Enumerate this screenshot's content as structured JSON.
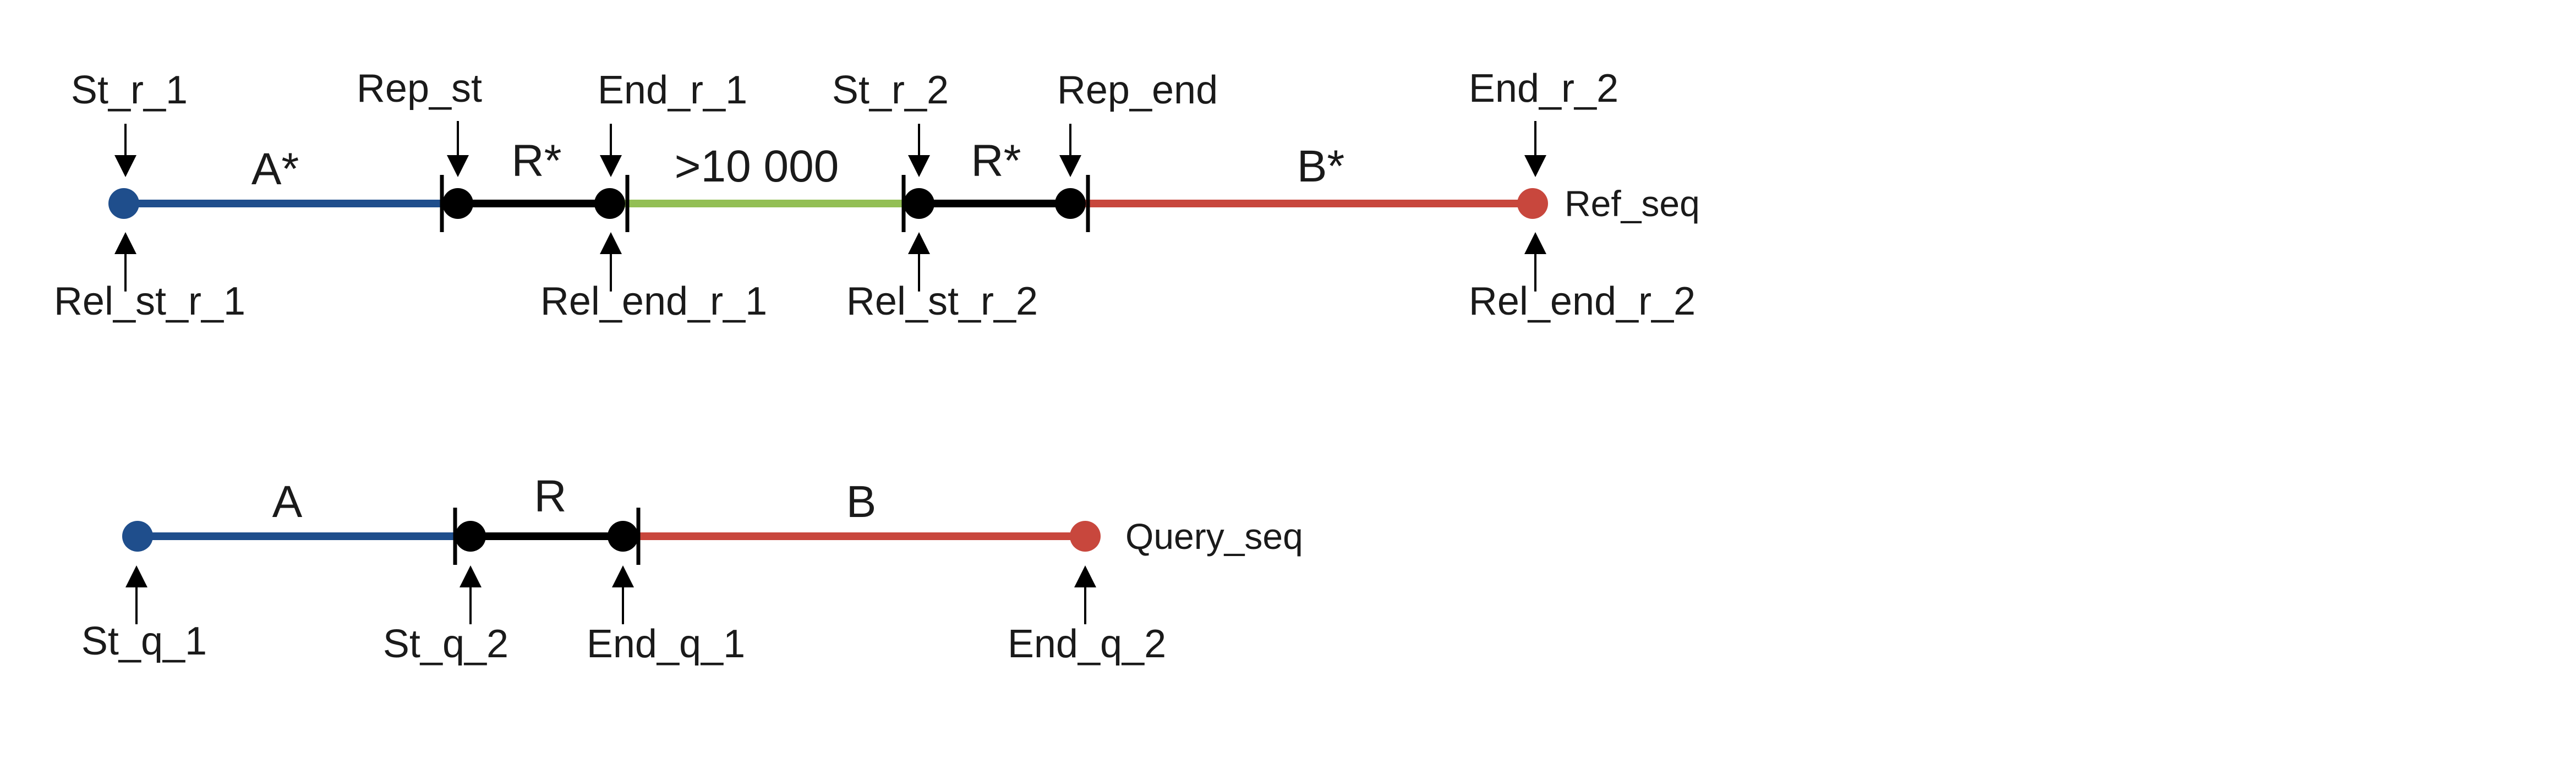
{
  "colors": {
    "blue": "#1f4e8c",
    "black": "#000000",
    "green": "#93bf55",
    "red": "#c8473d"
  },
  "ref": {
    "seq_label": "Ref_seq",
    "segments": {
      "a": "A*",
      "r1": "R*",
      "gap": ">10 000",
      "r2": "R*",
      "b": "B*"
    },
    "top": {
      "st_r_1": "St_r_1",
      "rep_st": "Rep_st",
      "end_r_1": "End_r_1",
      "st_r_2": "St_r_2",
      "rep_end": "Rep_end",
      "end_r_2": "End_r_2"
    },
    "bottom": {
      "rel_st_r_1": "Rel_st_r_1",
      "rel_end_r_1": "Rel_end_r_1",
      "rel_st_r_2": "Rel_st_r_2",
      "rel_end_r_2": "Rel_end_r_2"
    }
  },
  "query": {
    "seq_label": "Query_seq",
    "segments": {
      "a": "A",
      "r": "R",
      "b": "B"
    },
    "bottom": {
      "st_q_1": "St_q_1",
      "st_q_2": "St_q_2",
      "end_q_1": "End_q_1",
      "end_q_2": "End_q_2"
    }
  }
}
